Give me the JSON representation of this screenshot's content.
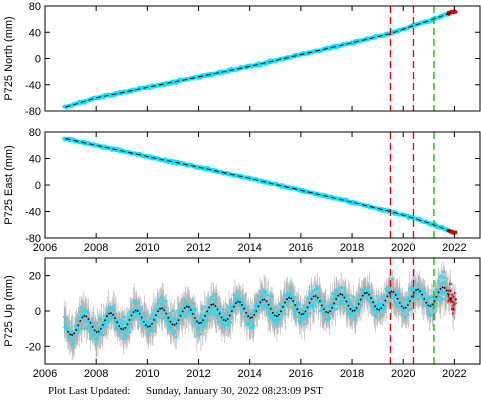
{
  "footer": {
    "label": "Plot Last Updated:",
    "timestamp": "Sunday, January 30, 2022 08:23:09 PST"
  },
  "colors": {
    "data": "#00e5ff",
    "error_bar": "#b0b0b0",
    "model": "#000000",
    "recent": "#dd0000",
    "event_red": "#ee0000",
    "event_green": "#00bb00"
  },
  "chart_data": [
    {
      "type": "scatter",
      "ylabel": "P725 North (mm)",
      "xlim": [
        2006,
        2023
      ],
      "ylim": [
        -80,
        80
      ],
      "xticks": [
        "2006",
        "2008",
        "2010",
        "2012",
        "2014",
        "2016",
        "2018",
        "2020",
        "2022"
      ],
      "yticks": [
        "-80",
        "-40",
        "0",
        "40",
        "80"
      ],
      "x_tick_labels_shown": false,
      "series": [
        {
          "x": [
            2006.8,
            2008,
            2010,
            2012,
            2014,
            2016,
            2018,
            2019.5,
            2020.4,
            2021.2,
            2022.0
          ],
          "y": [
            -74,
            -60,
            -44,
            -28,
            -12,
            6,
            24,
            38,
            50,
            60,
            72
          ]
        }
      ],
      "vlines": [
        {
          "x": 2019.5,
          "color": "red"
        },
        {
          "x": 2020.4,
          "color": "red"
        },
        {
          "x": 2021.2,
          "color": "green"
        }
      ]
    },
    {
      "type": "scatter",
      "ylabel": "P725 East (mm)",
      "xlim": [
        2006,
        2023
      ],
      "ylim": [
        -80,
        80
      ],
      "xticks": [
        "2006",
        "2008",
        "2010",
        "2012",
        "2014",
        "2016",
        "2018",
        "2020",
        "2022"
      ],
      "yticks": [
        "-80",
        "-40",
        "0",
        "40",
        "80"
      ],
      "x_tick_labels_shown": true,
      "series": [
        {
          "x": [
            2006.8,
            2008,
            2010,
            2012,
            2014,
            2016,
            2018,
            2019.5,
            2020.4,
            2021.2,
            2022.0
          ],
          "y": [
            70,
            60,
            43,
            27,
            10,
            -8,
            -26,
            -40,
            -50,
            -60,
            -72
          ]
        }
      ],
      "vlines": [
        {
          "x": 2019.5,
          "color": "red"
        },
        {
          "x": 2020.4,
          "color": "red"
        },
        {
          "x": 2021.2,
          "color": "green"
        }
      ]
    },
    {
      "type": "scatter",
      "ylabel": "P725 Up (mm)",
      "xlim": [
        2006,
        2023
      ],
      "ylim": [
        -30,
        30
      ],
      "xticks": [
        "2006",
        "2008",
        "2010",
        "2012",
        "2014",
        "2016",
        "2018",
        "2020",
        "2022"
      ],
      "yticks": [
        "-20",
        "0",
        "20"
      ],
      "x_tick_labels_shown": true,
      "model": {
        "trend_start": -9,
        "trend_end": 9,
        "seasonal_amplitude": 5
      },
      "series": [
        {
          "x": [
            2006.8,
            2008,
            2010,
            2012,
            2014,
            2016,
            2018,
            2019.5,
            2020.4,
            2021.2,
            2022.0
          ],
          "y": [
            -9,
            -7,
            -4,
            -2,
            1,
            3,
            5,
            6,
            7,
            8,
            9
          ]
        }
      ],
      "vlines": [
        {
          "x": 2019.5,
          "color": "red"
        },
        {
          "x": 2020.4,
          "color": "red"
        },
        {
          "x": 2021.2,
          "color": "green"
        }
      ]
    }
  ]
}
